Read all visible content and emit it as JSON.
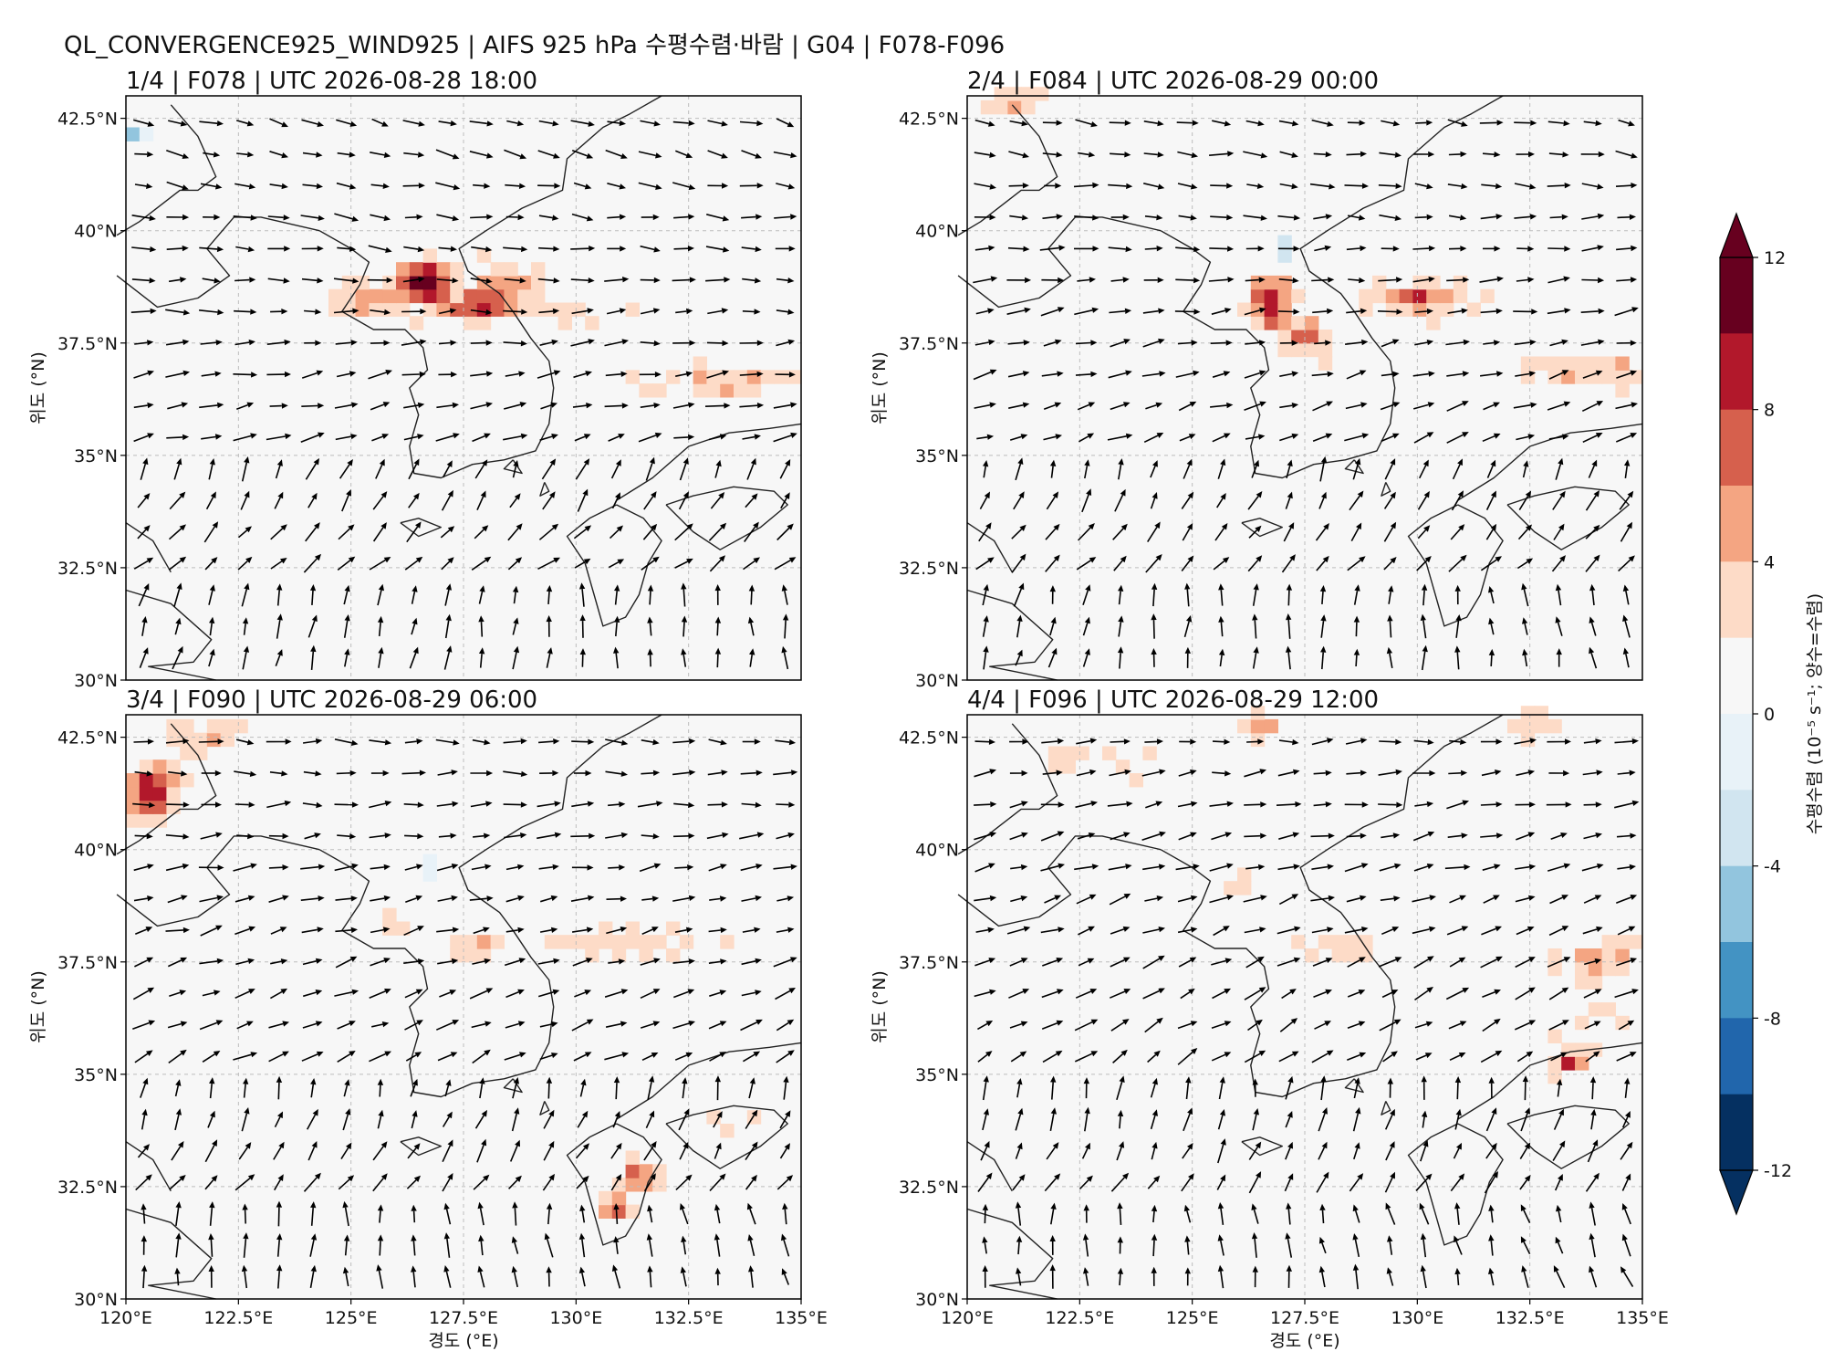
{
  "figure": {
    "title": "QL_CONVERGENCE925_WIND925 | AIFS 925 hPa 수평수렴·바람 | G04 | F078-F096"
  },
  "axes_labels": {
    "xlabel": "경도 (°E)",
    "ylabel": "위도 (°N)"
  },
  "ticks": {
    "lon": [
      "120°E",
      "122.5°E",
      "125°E",
      "127.5°E",
      "130°E",
      "132.5°E",
      "135°E"
    ],
    "lat": [
      "30°N",
      "32.5°N",
      "35°N",
      "37.5°N",
      "40°N",
      "42.5°N"
    ]
  },
  "panels": [
    {
      "title": "1/4 | F078 | UTC 2026-08-28 18:00",
      "seed": 11,
      "blobs": [
        {
          "lon": 126.6,
          "lat": 38.9,
          "amp": 12,
          "sx": 0.5,
          "sy": 0.4
        },
        {
          "lon": 127.8,
          "lat": 38.3,
          "amp": 9,
          "sx": 0.7,
          "sy": 0.3
        },
        {
          "lon": 128.4,
          "lat": 38.9,
          "amp": 5,
          "sx": 0.8,
          "sy": 0.4
        },
        {
          "lon": 125.6,
          "lat": 38.4,
          "amp": 4,
          "sx": 1.2,
          "sy": 0.4
        },
        {
          "lon": 133.2,
          "lat": 36.6,
          "amp": 5,
          "sx": 1.4,
          "sy": 0.35
        },
        {
          "lon": 129.8,
          "lat": 38.1,
          "amp": 3,
          "sx": 1.2,
          "sy": 0.4
        },
        {
          "lon": 126.9,
          "lat": 39.6,
          "amp": -8,
          "sx": 0.12,
          "sy": 0.15
        },
        {
          "lon": 120.2,
          "lat": 42.2,
          "amp": -7,
          "sx": 0.25,
          "sy": 0.25
        }
      ]
    },
    {
      "title": "2/4 | F084 | UTC 2026-08-29 00:00",
      "seed": 23,
      "blobs": [
        {
          "lon": 126.7,
          "lat": 38.4,
          "amp": 10,
          "sx": 0.5,
          "sy": 0.6
        },
        {
          "lon": 127.6,
          "lat": 37.6,
          "amp": 8,
          "sx": 0.5,
          "sy": 0.4
        },
        {
          "lon": 130.0,
          "lat": 38.5,
          "amp": 7,
          "sx": 1.2,
          "sy": 0.35
        },
        {
          "lon": 133.8,
          "lat": 36.9,
          "amp": 5,
          "sx": 1.2,
          "sy": 0.4
        },
        {
          "lon": 127.0,
          "lat": 39.6,
          "amp": -9,
          "sx": 0.12,
          "sy": 0.25
        },
        {
          "lon": 121.0,
          "lat": 42.8,
          "amp": 3,
          "sx": 1.0,
          "sy": 0.3
        }
      ]
    },
    {
      "title": "3/4 | F090 | UTC 2026-08-29 06:00",
      "seed": 37,
      "blobs": [
        {
          "lon": 120.6,
          "lat": 41.3,
          "amp": 9,
          "sx": 0.6,
          "sy": 0.6
        },
        {
          "lon": 121.8,
          "lat": 42.5,
          "amp": 4,
          "sx": 1.0,
          "sy": 0.3
        },
        {
          "lon": 131.3,
          "lat": 32.8,
          "amp": 9,
          "sx": 0.35,
          "sy": 0.4
        },
        {
          "lon": 130.9,
          "lat": 32.0,
          "amp": 6,
          "sx": 0.3,
          "sy": 0.4
        },
        {
          "lon": 127.8,
          "lat": 37.8,
          "amp": 5,
          "sx": 0.5,
          "sy": 0.3
        },
        {
          "lon": 131.3,
          "lat": 37.9,
          "amp": 4,
          "sx": 1.6,
          "sy": 0.35
        },
        {
          "lon": 133.3,
          "lat": 34.0,
          "amp": 3,
          "sx": 0.8,
          "sy": 0.3
        },
        {
          "lon": 126.8,
          "lat": 39.6,
          "amp": -6,
          "sx": 0.12,
          "sy": 0.2
        },
        {
          "lon": 126.1,
          "lat": 38.6,
          "amp": 2,
          "sx": 0.4,
          "sy": 0.4
        }
      ]
    },
    {
      "title": "4/4 | F096 | UTC 2026-08-29 12:00",
      "seed": 51,
      "blobs": [
        {
          "lon": 126.5,
          "lat": 42.7,
          "amp": 6,
          "sx": 0.5,
          "sy": 0.3
        },
        {
          "lon": 133.4,
          "lat": 35.3,
          "amp": 8,
          "sx": 0.4,
          "sy": 0.25
        },
        {
          "lon": 134.0,
          "lat": 37.5,
          "amp": 4,
          "sx": 1.2,
          "sy": 0.5
        },
        {
          "lon": 134.0,
          "lat": 36.0,
          "amp": 3,
          "sx": 1.0,
          "sy": 0.4
        },
        {
          "lon": 128.3,
          "lat": 37.8,
          "amp": 3,
          "sx": 1.0,
          "sy": 0.4
        },
        {
          "lon": 123.0,
          "lat": 42.0,
          "amp": 3,
          "sx": 1.5,
          "sy": 0.4
        },
        {
          "lon": 132.6,
          "lat": 42.8,
          "amp": 4,
          "sx": 0.8,
          "sy": 0.3
        },
        {
          "lon": 126.0,
          "lat": 39.3,
          "amp": 3,
          "sx": 0.3,
          "sy": 0.5
        }
      ]
    }
  ],
  "colorbar": {
    "label": "수평수렴 (10⁻⁵ s⁻¹; 양수=수렴)",
    "tick_labels": [
      "12",
      "8",
      "4",
      "0",
      "-4",
      "-8",
      "-12"
    ],
    "levels": [
      -12,
      -10,
      -8,
      -6,
      -4,
      -2,
      2,
      4,
      6,
      8,
      10,
      12
    ],
    "colors": [
      "#053061",
      "#2166ac",
      "#4393c3",
      "#92c5de",
      "#d1e5f0",
      "#e8f2f8",
      "#f7f7f7",
      "#fddbc7",
      "#f4a582",
      "#d6604d",
      "#b2182b",
      "#67001f"
    ],
    "extend": "both"
  },
  "map_extent": {
    "lon": [
      120,
      135
    ],
    "lat": [
      30,
      43
    ]
  }
}
